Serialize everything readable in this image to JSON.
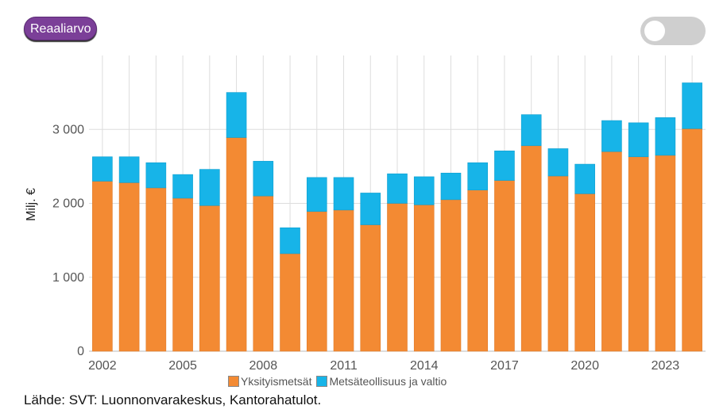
{
  "toolbar": {
    "badge_label": "Reaaliarvo"
  },
  "source": "Lähde: SVT: Luonnonvarakeskus, Kantorahatulot.",
  "colors": {
    "private": "#f38a33",
    "industry": "#17b4e8"
  },
  "chart_data": {
    "type": "bar",
    "stacked": true,
    "title": "",
    "xlabel": "",
    "ylabel": "Milj. €",
    "ylim": [
      0,
      4000
    ],
    "yticks": [
      0,
      1000,
      2000,
      3000
    ],
    "ytick_labels": [
      "0",
      "1 000",
      "2 000",
      "3 000"
    ],
    "xtick_labels": [
      "2002",
      "2005",
      "2008",
      "2011",
      "2014",
      "2017",
      "2020",
      "2023"
    ],
    "categories": [
      2002,
      2003,
      2004,
      2005,
      2006,
      2007,
      2008,
      2009,
      2010,
      2011,
      2012,
      2013,
      2014,
      2015,
      2016,
      2017,
      2018,
      2019,
      2020,
      2021,
      2022,
      2023,
      2024
    ],
    "series": [
      {
        "name": "Yksityismetsät",
        "color": "#f38a33",
        "values": [
          2300,
          2280,
          2210,
          2070,
          1970,
          2890,
          2100,
          1320,
          1890,
          1910,
          1710,
          2000,
          1980,
          2050,
          2180,
          2310,
          2780,
          2370,
          2130,
          2700,
          2630,
          2650,
          3010
        ]
      },
      {
        "name": "Metsäteollisuus ja valtio",
        "color": "#17b4e8",
        "values": [
          330,
          350,
          340,
          320,
          490,
          610,
          470,
          350,
          460,
          440,
          430,
          400,
          380,
          360,
          370,
          400,
          420,
          370,
          400,
          420,
          460,
          510,
          620
        ]
      }
    ]
  }
}
